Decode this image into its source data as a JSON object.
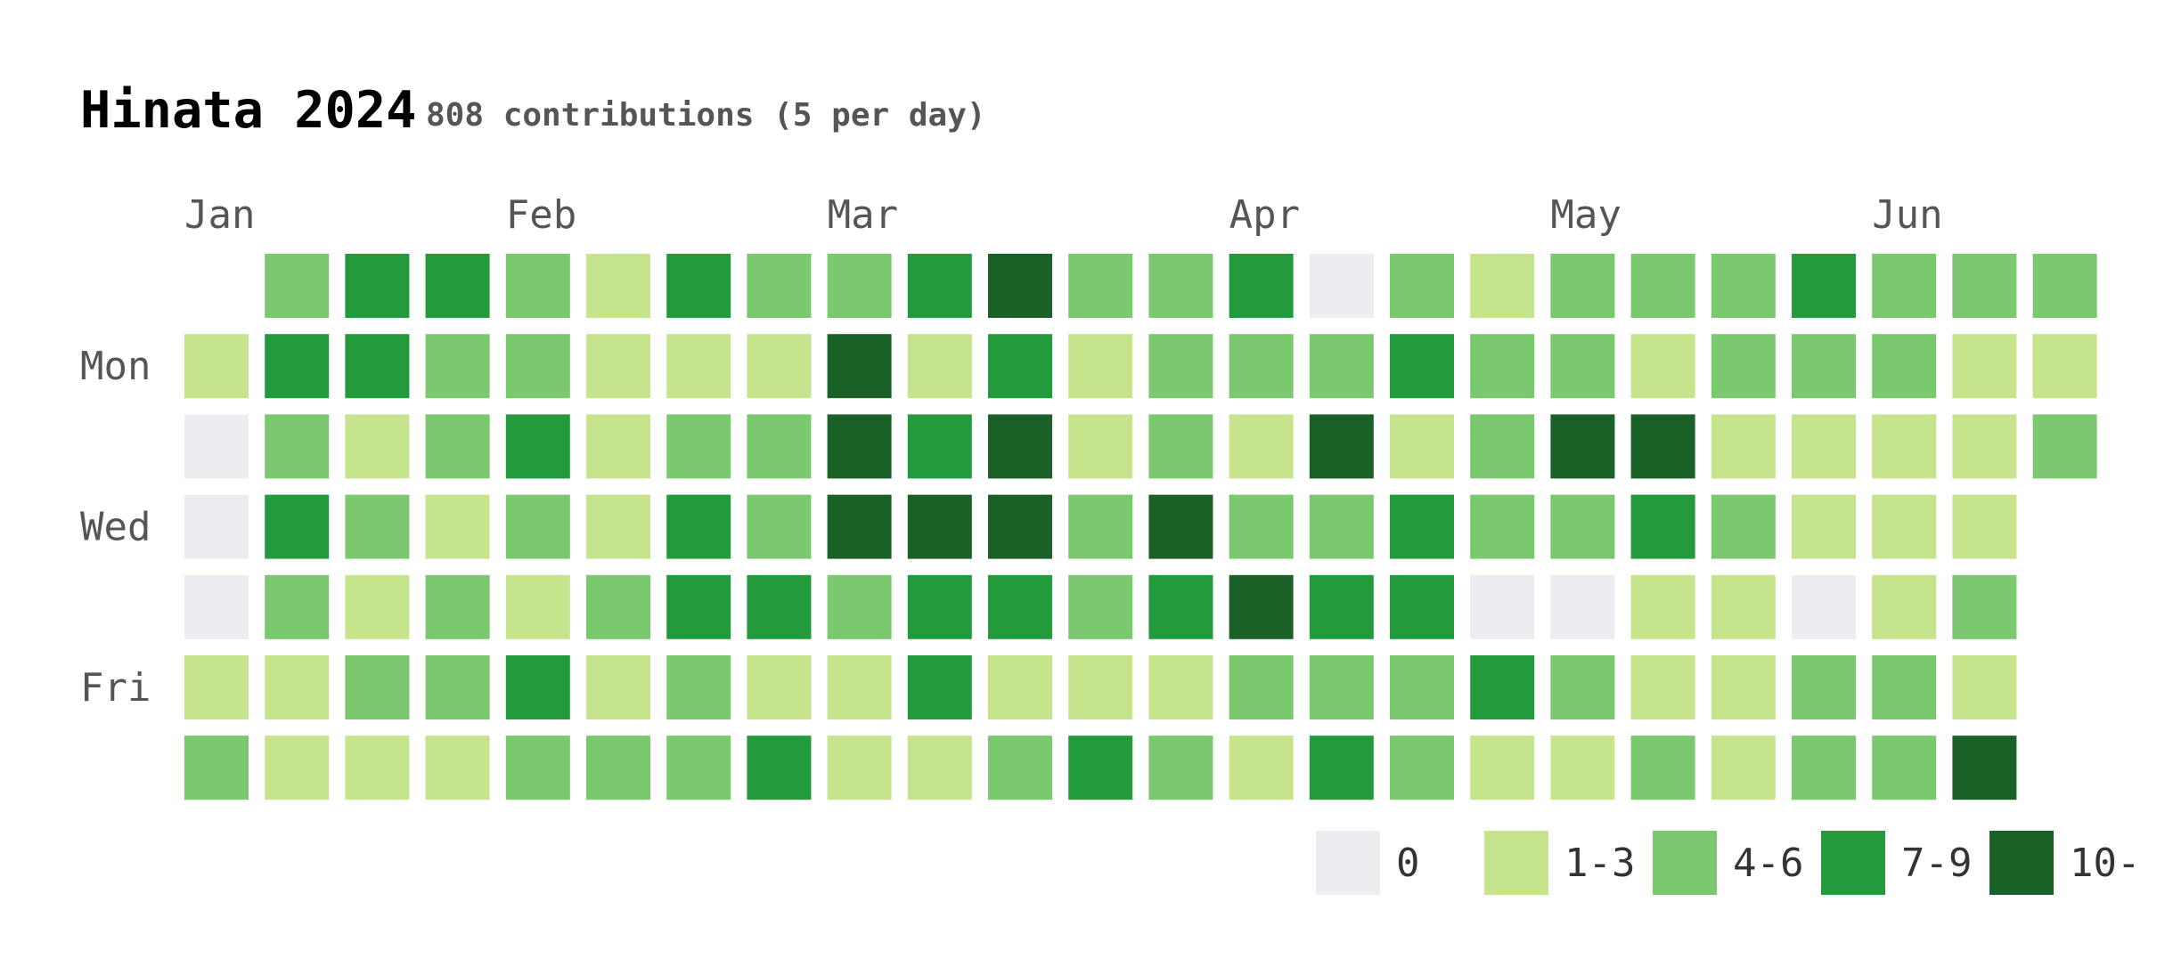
{
  "chart_data": {
    "type": "heatmap",
    "title": "Hinata 2024",
    "subtitle": "808 contributions (5 per day)",
    "month_labels": [
      {
        "label": "Jan",
        "week": 0
      },
      {
        "label": "Feb",
        "week": 4
      },
      {
        "label": "Mar",
        "week": 8
      },
      {
        "label": "Apr",
        "week": 13
      },
      {
        "label": "May",
        "week": 17
      },
      {
        "label": "Jun",
        "week": 21
      }
    ],
    "day_labels": [
      {
        "label": "Mon",
        "row": 1
      },
      {
        "label": "Wed",
        "row": 3
      },
      {
        "label": "Fri",
        "row": 5
      }
    ],
    "levels": [
      {
        "label": "0",
        "color": "#ebedf0"
      },
      {
        "label": "1-3",
        "color": "#c6e48b"
      },
      {
        "label": "4-6",
        "color": "#7bc96f"
      },
      {
        "label": "7-9",
        "color": "#239a3b"
      },
      {
        "label": "10-",
        "color": "#196127"
      }
    ],
    "weeks": [
      [
        null,
        1,
        0,
        0,
        0,
        1,
        2
      ],
      [
        2,
        3,
        2,
        3,
        2,
        1,
        1
      ],
      [
        3,
        3,
        1,
        2,
        1,
        2,
        1
      ],
      [
        3,
        2,
        2,
        1,
        2,
        2,
        1
      ],
      [
        2,
        2,
        3,
        2,
        1,
        3,
        2
      ],
      [
        1,
        1,
        1,
        1,
        2,
        1,
        2
      ],
      [
        3,
        1,
        2,
        3,
        3,
        2,
        2
      ],
      [
        2,
        1,
        2,
        2,
        3,
        1,
        3
      ],
      [
        2,
        4,
        4,
        4,
        2,
        1,
        1
      ],
      [
        3,
        1,
        3,
        4,
        3,
        3,
        1
      ],
      [
        4,
        3,
        4,
        4,
        3,
        1,
        2
      ],
      [
        2,
        1,
        1,
        2,
        2,
        1,
        3
      ],
      [
        2,
        2,
        2,
        4,
        3,
        1,
        2
      ],
      [
        3,
        2,
        1,
        2,
        4,
        2,
        1
      ],
      [
        0,
        2,
        4,
        2,
        3,
        2,
        3
      ],
      [
        2,
        3,
        1,
        3,
        3,
        2,
        2
      ],
      [
        1,
        2,
        2,
        2,
        0,
        3,
        1
      ],
      [
        2,
        2,
        4,
        2,
        0,
        2,
        1
      ],
      [
        2,
        1,
        4,
        3,
        1,
        1,
        2
      ],
      [
        2,
        2,
        1,
        2,
        1,
        1,
        1
      ],
      [
        3,
        2,
        1,
        1,
        0,
        2,
        2
      ],
      [
        2,
        2,
        1,
        1,
        1,
        2,
        2
      ],
      [
        2,
        1,
        1,
        1,
        2,
        1,
        4
      ],
      [
        2,
        1,
        2,
        null,
        null,
        null,
        null
      ]
    ]
  }
}
